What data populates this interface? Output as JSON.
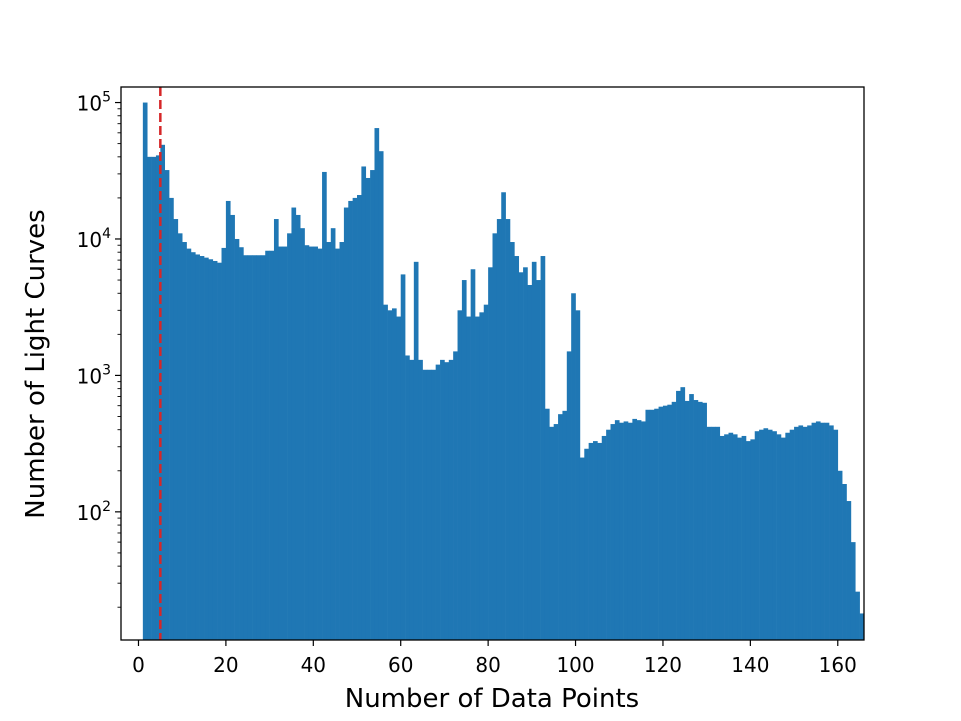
{
  "chart_data": {
    "type": "bar",
    "subtype": "histogram",
    "xlabel": "Number of Data Points",
    "ylabel": "Number of Light Curves",
    "xlim": [
      -4,
      166
    ],
    "ylim": [
      11.5,
      130000
    ],
    "yscale": "log",
    "xticks": [
      0,
      20,
      40,
      60,
      80,
      100,
      120,
      140,
      160
    ],
    "yticks": [
      {
        "value": 100,
        "base": "10",
        "exp": "2"
      },
      {
        "value": 1000,
        "base": "10",
        "exp": "3"
      },
      {
        "value": 10000,
        "base": "10",
        "exp": "4"
      },
      {
        "value": 100000,
        "base": "10",
        "exp": "5"
      }
    ],
    "bar_color": "#1f77b4",
    "bin_start": 1,
    "bin_width": 1,
    "values": [
      100000,
      40000,
      40000,
      41000,
      49000,
      32000,
      20000,
      14000,
      11000,
      9500,
      8500,
      8000,
      7700,
      7500,
      7300,
      7100,
      6900,
      6700,
      8600,
      19000,
      15000,
      10000,
      8700,
      7600,
      7600,
      7600,
      7600,
      7600,
      8200,
      8200,
      14000,
      8800,
      8800,
      11000,
      17000,
      15000,
      12000,
      9000,
      8800,
      8800,
      8500,
      31000,
      9500,
      12000,
      8500,
      9500,
      17000,
      19000,
      20000,
      21000,
      34000,
      28000,
      32000,
      65000,
      44000,
      3300,
      3000,
      3100,
      2700,
      5500,
      1400,
      1300,
      6800,
      1300,
      1100,
      1100,
      1100,
      1200,
      1300,
      1250,
      1300,
      1500,
      3000,
      5000,
      2700,
      6000,
      2700,
      2900,
      3300,
      6200,
      11000,
      14000,
      22000,
      14000,
      9500,
      7500,
      5700,
      6200,
      4600,
      6800,
      5000,
      7500,
      570,
      420,
      440,
      520,
      550,
      1500,
      4000,
      3000,
      250,
      290,
      320,
      330,
      320,
      360,
      400,
      440,
      470,
      450,
      460,
      450,
      480,
      470,
      460,
      560,
      560,
      570,
      590,
      600,
      610,
      640,
      770,
      820,
      650,
      730,
      660,
      640,
      630,
      420,
      420,
      420,
      360,
      370,
      380,
      370,
      350,
      360,
      330,
      340,
      390,
      400,
      410,
      400,
      390,
      370,
      350,
      380,
      400,
      420,
      430,
      420,
      430,
      450,
      460,
      450,
      450,
      430,
      400,
      200,
      160,
      120,
      60,
      26,
      18
    ],
    "threshold_line": {
      "x": 5,
      "color": "#d62728",
      "style": "dashed"
    }
  }
}
